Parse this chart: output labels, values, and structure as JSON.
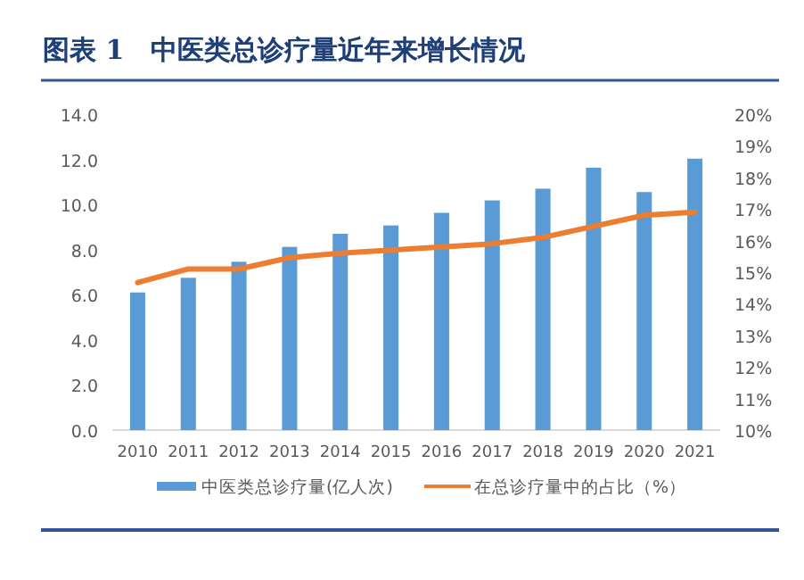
{
  "chart_data": {
    "type": "bar",
    "title": "图表 1　中医类总诊疗量近年来增长情况",
    "categories": [
      "2010",
      "2011",
      "2012",
      "2013",
      "2014",
      "2015",
      "2016",
      "2017",
      "2018",
      "2019",
      "2020",
      "2021"
    ],
    "series": [
      {
        "name": "中医类总诊疗量(亿人次)",
        "color": "#5b9bd5",
        "values": [
          6.1,
          6.75,
          7.46,
          8.12,
          8.7,
          9.07,
          9.63,
          10.18,
          10.7,
          11.63,
          10.55,
          12.03
        ]
      },
      {
        "name": "在总诊疗量中的占比（%）",
        "type": "line",
        "axis": "y2",
        "color": "#ed7d31",
        "values": [
          14.67,
          15.1,
          15.1,
          15.46,
          15.6,
          15.7,
          15.8,
          15.9,
          16.1,
          16.45,
          16.8,
          16.9
        ]
      }
    ],
    "ylim": [
      0,
      14
    ],
    "yticks": [
      {
        "value": 0,
        "label": "0.0"
      },
      {
        "value": 2,
        "label": "2.0"
      },
      {
        "value": 4,
        "label": "4.0"
      },
      {
        "value": 6,
        "label": "6.0"
      },
      {
        "value": 8,
        "label": "8.0"
      },
      {
        "value": 10,
        "label": "10.0"
      },
      {
        "value": 12,
        "label": "12.0"
      },
      {
        "value": 14,
        "label": "14.0"
      }
    ],
    "y2lim": [
      10,
      20
    ],
    "y2ticks": [
      {
        "value": 10,
        "label": "10%"
      },
      {
        "value": 11,
        "label": "11%"
      },
      {
        "value": 12,
        "label": "12%"
      },
      {
        "value": 13,
        "label": "13%"
      },
      {
        "value": 14,
        "label": "14%"
      },
      {
        "value": 15,
        "label": "15%"
      },
      {
        "value": 16,
        "label": "16%"
      },
      {
        "value": 17,
        "label": "17%"
      },
      {
        "value": 18,
        "label": "18%"
      },
      {
        "value": 19,
        "label": "19%"
      },
      {
        "value": 20,
        "label": "20%"
      }
    ],
    "legend": "bottom",
    "grid": false
  }
}
